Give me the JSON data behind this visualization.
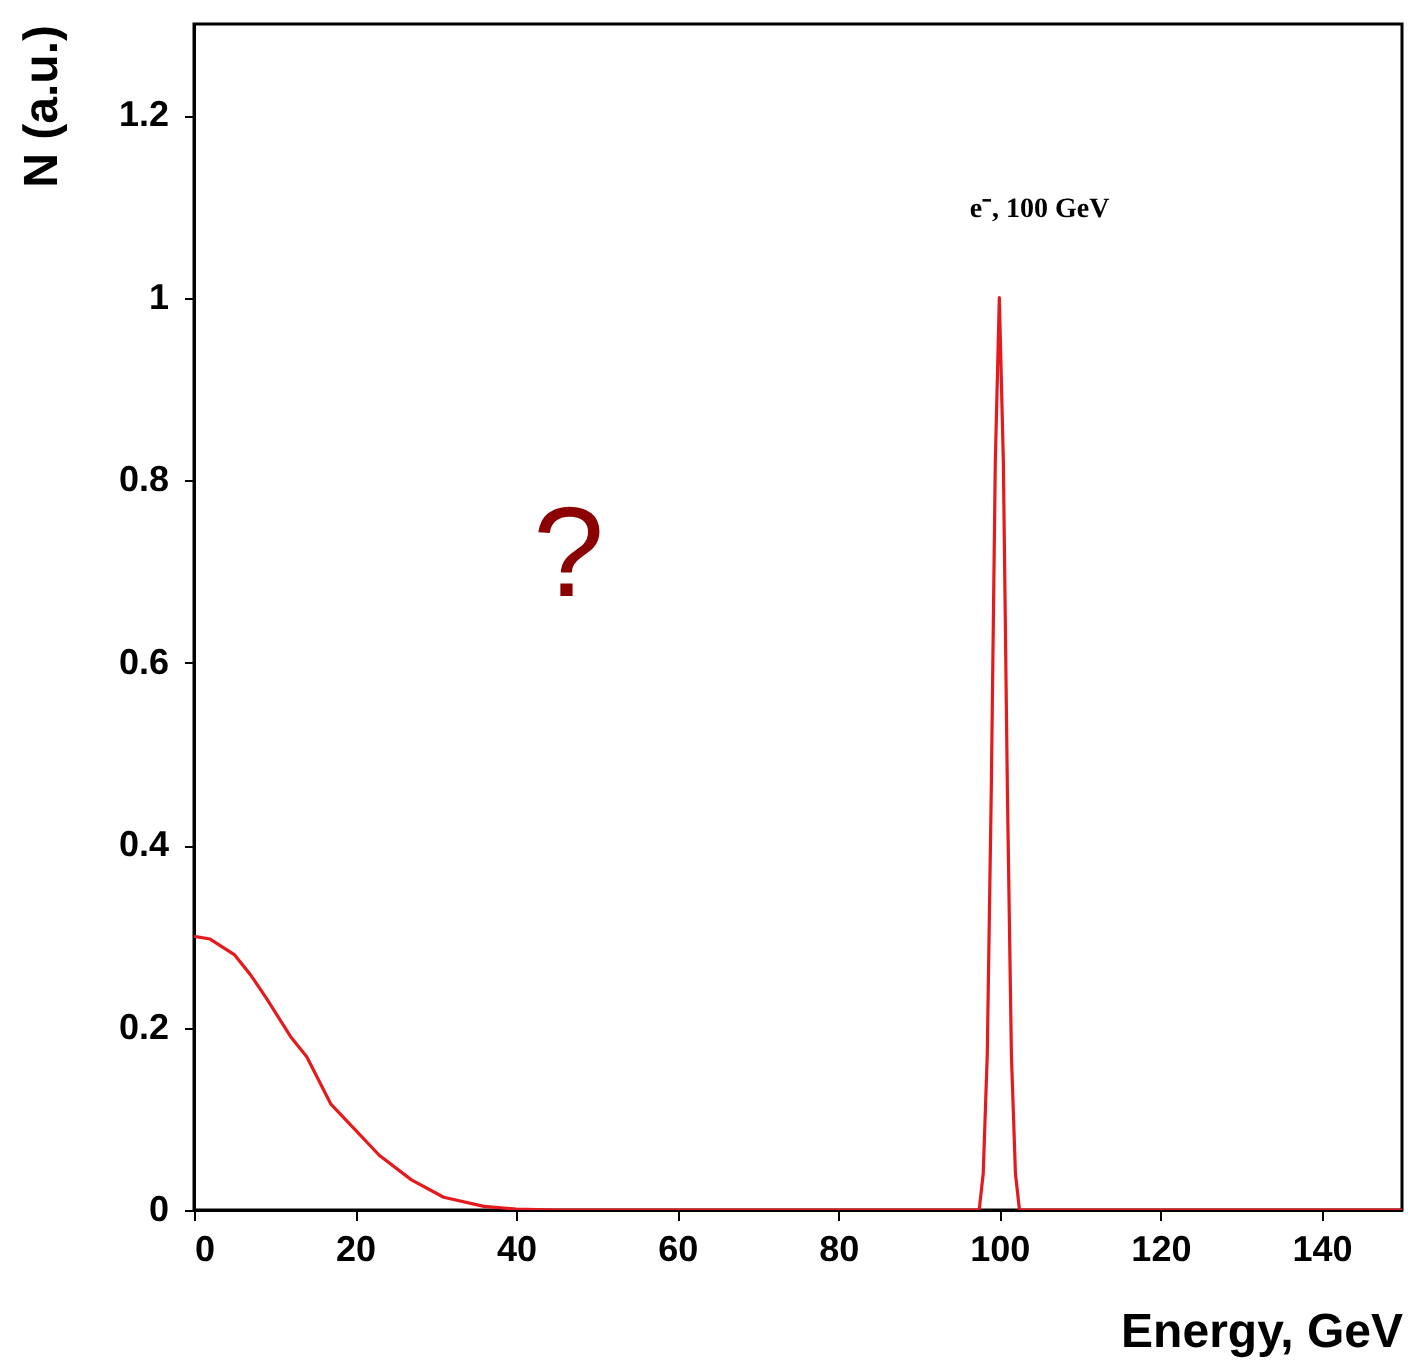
{
  "chart_data": {
    "type": "line",
    "xlabel": "Energy, GeV",
    "ylabel": "N (a.u.)",
    "xlim": [
      0,
      150
    ],
    "ylim": [
      0,
      1.3
    ],
    "xticks": [
      0,
      20,
      40,
      60,
      80,
      100,
      120,
      140
    ],
    "yticks": [
      0,
      0.2,
      0.4,
      0.6,
      0.8,
      1,
      1.2
    ],
    "annotations": [
      "?",
      "e⁻, 100 GeV"
    ],
    "series": [
      {
        "color": "#e41a1c",
        "x": [
          0,
          2,
          5,
          7,
          9,
          12,
          14,
          17,
          20,
          23,
          27,
          31,
          36,
          40,
          45,
          60,
          80,
          97.5,
          98,
          98.5,
          99,
          99.5,
          100,
          100.5,
          101,
          101.5,
          102,
          102.5,
          120,
          150
        ],
        "values": [
          0.3,
          0.297,
          0.28,
          0.258,
          0.232,
          0.19,
          0.168,
          0.116,
          0.088,
          0.06,
          0.033,
          0.014,
          0.004,
          0.001,
          0,
          0,
          0,
          0,
          0.04,
          0.17,
          0.46,
          0.82,
          1,
          0.82,
          0.46,
          0.17,
          0.04,
          0,
          0,
          0
        ]
      }
    ]
  }
}
